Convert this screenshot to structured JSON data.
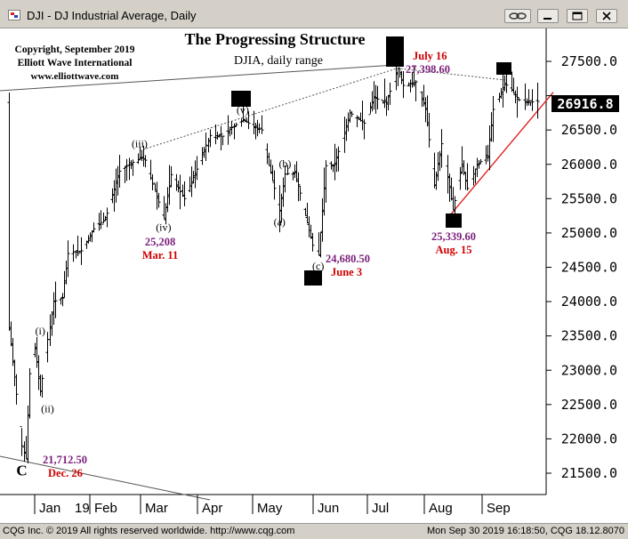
{
  "window": {
    "title": "DJI - DJ Industrial Average, Daily",
    "link_icon": "chain-link-icon",
    "minimize_icon": "minimize-icon",
    "maximize_icon": "maximize-icon",
    "close_icon": "close-icon"
  },
  "status": {
    "left": "CQG Inc. © 2019 All rights reserved worldwide. http://www.cqg.com",
    "right": "Mon Sep 30 2019 16:18:50, CQG 18.12.8070"
  },
  "chart_data": {
    "type": "ohlc",
    "title": "The Progressing Structure",
    "subtitle": "DJIA, daily range",
    "copyright_lines": [
      "Copyright, September 2019",
      "Elliott Wave International",
      "www.elliottwave.com"
    ],
    "xlabel": "",
    "ylabel": "",
    "ylim": [
      21200,
      28200
    ],
    "y_ticks": [
      21500,
      22000,
      22500,
      23000,
      23500,
      24000,
      24500,
      25000,
      25500,
      26000,
      26500,
      27000,
      27500
    ],
    "y_tick_labels": [
      "21500.0",
      "22000.0",
      "22500.0",
      "23000.0",
      "23500.0",
      "24000.0",
      "24500.0",
      "25000.0",
      "25500.0",
      "26000.0",
      "26500.0",
      "27000.0",
      "27500.0"
    ],
    "last_price": 26916.8,
    "last_price_label": "26916.8",
    "months": [
      "Jan",
      "19",
      "Feb",
      "Mar",
      "Apr",
      "May",
      "Jun",
      "Jul",
      "Aug",
      "Sep"
    ],
    "x_start_date": "2018-12-17",
    "x_end_date": "2019-09-30",
    "price_path": [
      [
        "2018-12-17",
        23600
      ],
      [
        "2018-12-20",
        22900
      ],
      [
        "2018-12-24",
        21900
      ],
      [
        "2018-12-26",
        21712.5
      ],
      [
        "2018-12-28",
        22950
      ],
      [
        "2018-12-31",
        23330
      ],
      [
        "2019-01-03",
        22690
      ],
      [
        "2019-01-07",
        23450
      ],
      [
        "2019-01-10",
        24000
      ],
      [
        "2019-01-15",
        24060
      ],
      [
        "2019-01-18",
        24700
      ],
      [
        "2019-01-25",
        24740
      ],
      [
        "2019-02-01",
        25060
      ],
      [
        "2019-02-07",
        25200
      ],
      [
        "2019-02-15",
        25900
      ],
      [
        "2019-02-22",
        26030
      ],
      [
        "2019-02-27",
        26100
      ],
      [
        "2019-03-01",
        26060
      ],
      [
        "2019-03-08",
        25450
      ],
      [
        "2019-03-11",
        25208
      ],
      [
        "2019-03-15",
        25850
      ],
      [
        "2019-03-22",
        25500
      ],
      [
        "2019-03-29",
        25930
      ],
      [
        "2019-04-05",
        26420
      ],
      [
        "2019-04-12",
        26410
      ],
      [
        "2019-04-18",
        26560
      ],
      [
        "2019-04-23",
        26650
      ],
      [
        "2019-04-29",
        26550
      ],
      [
        "2019-05-03",
        26500
      ],
      [
        "2019-05-07",
        25980
      ],
      [
        "2019-05-13",
        25320
      ],
      [
        "2019-05-16",
        25860
      ],
      [
        "2019-05-21",
        25880
      ],
      [
        "2019-05-24",
        25580
      ],
      [
        "2019-05-31",
        24820
      ],
      [
        "2019-06-03",
        24680.5
      ],
      [
        "2019-06-07",
        25980
      ],
      [
        "2019-06-12",
        26000
      ],
      [
        "2019-06-20",
        26750
      ],
      [
        "2019-06-28",
        26600
      ],
      [
        "2019-07-03",
        26970
      ],
      [
        "2019-07-10",
        26900
      ],
      [
        "2019-07-16",
        27398.6
      ],
      [
        "2019-07-19",
        27150
      ],
      [
        "2019-07-26",
        27200
      ],
      [
        "2019-07-31",
        26800
      ],
      [
        "2019-08-05",
        25700
      ],
      [
        "2019-08-09",
        26300
      ],
      [
        "2019-08-14",
        25500
      ],
      [
        "2019-08-15",
        25339.6
      ],
      [
        "2019-08-20",
        26000
      ],
      [
        "2019-08-23",
        25650
      ],
      [
        "2019-08-28",
        26000
      ],
      [
        "2019-09-03",
        26120
      ],
      [
        "2019-09-06",
        26800
      ],
      [
        "2019-09-12",
        27180
      ],
      [
        "2019-09-16",
        27080
      ],
      [
        "2019-09-19",
        26950
      ],
      [
        "2019-09-24",
        26900
      ],
      [
        "2019-09-30",
        26916.8
      ]
    ],
    "wave_labels": [
      {
        "text": "(i)",
        "date": "2019-01-03",
        "price": 23520,
        "pos": "above"
      },
      {
        "text": "(ii)",
        "date": "2019-01-07",
        "price": 22520,
        "pos": "below"
      },
      {
        "text": "(iii)",
        "date": "2019-02-26",
        "price": 26250,
        "pos": "above"
      },
      {
        "text": "(iv)",
        "date": "2019-03-11",
        "price": 25160,
        "pos": "below"
      },
      {
        "text": "(v)",
        "date": "2019-04-23",
        "price": 26740,
        "pos": "above"
      },
      {
        "text": "(a)",
        "date": "2019-05-13",
        "price": 25240,
        "pos": "below"
      },
      {
        "text": "(b)",
        "date": "2019-05-16",
        "price": 25960,
        "pos": "above"
      },
      {
        "text": "(c)",
        "date": "2019-06-03",
        "price": 24600,
        "pos": "below"
      },
      {
        "text": "C",
        "date": "2018-12-24",
        "price": 21600,
        "pos": "below"
      }
    ],
    "price_annotations": [
      {
        "price_text": "21,712.50",
        "date_text": "Dec. 26",
        "date": "2018-12-26",
        "price": 21712.5
      },
      {
        "price_text": "25,208",
        "date_text": "Mar. 11",
        "date": "2019-03-11",
        "price": 25208
      },
      {
        "price_text": "24,680.50",
        "date_text": "June 3",
        "date": "2019-06-03",
        "price": 24680.5
      },
      {
        "price_text": "27,398.60",
        "date_text": "July 16",
        "date": "2019-07-16",
        "price": 27398.6
      },
      {
        "price_text": "25,339.60",
        "date_text": "Aug. 15",
        "date": "2019-08-15",
        "price": 25339.6
      }
    ],
    "colors": {
      "bars": "#000000",
      "price_annotation": "#7a1f7a",
      "date_annotation": "#d00000",
      "trendline": "#e02020",
      "connector": "#555555",
      "grid_background": "#ffffff"
    }
  }
}
